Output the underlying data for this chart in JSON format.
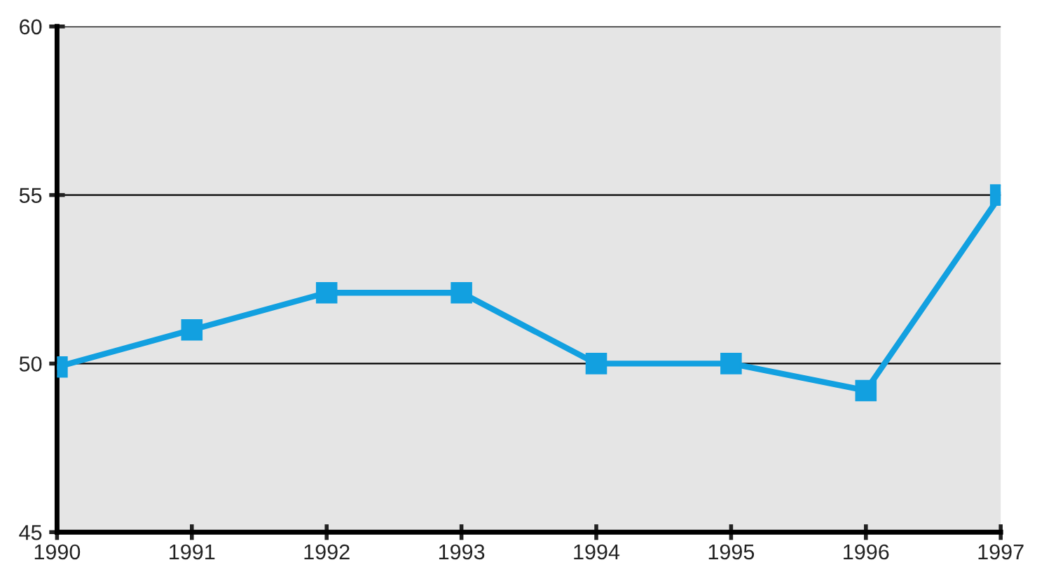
{
  "chart_data": {
    "type": "line",
    "x": [
      1990,
      1991,
      1992,
      1993,
      1994,
      1995,
      1996,
      1997
    ],
    "series": [
      {
        "color": "#12a0e0",
        "values": [
          49.9,
          51.0,
          52.1,
          52.1,
          50.0,
          50.0,
          49.2,
          55.0
        ]
      }
    ],
    "xlim": [
      1990,
      1997
    ],
    "xticks": [
      1990,
      1991,
      1992,
      1993,
      1994,
      1995,
      1996,
      1997
    ],
    "ylim": [
      45,
      60
    ],
    "yticks": [
      45,
      50,
      55,
      60
    ],
    "grid": "y",
    "marker": "square",
    "line_style": "solid"
  }
}
